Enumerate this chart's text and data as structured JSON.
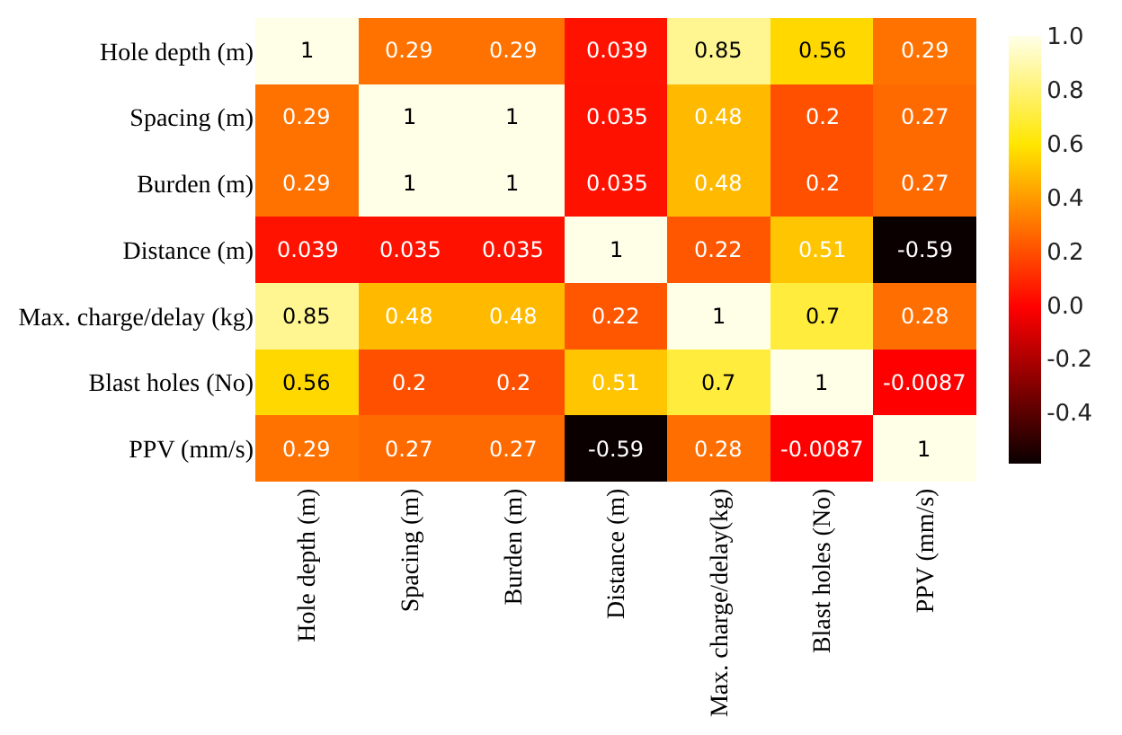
{
  "chart_data": {
    "type": "heatmap",
    "categories": [
      "Hole depth (m)",
      "Spacing (m)",
      "Burden (m)",
      "Distance (m)",
      "Max. charge/delay(kg)",
      "Blast holes (No)",
      "PPV (mm/s)"
    ],
    "y_categories": [
      "Hole depth (m)",
      "Spacing (m)",
      "Burden (m)",
      "Distance (m)",
      "Max. charge/delay (kg)",
      "Blast holes (No)",
      "PPV (mm/s)"
    ],
    "cells": [
      [
        1,
        0.29,
        0.29,
        0.039,
        0.85,
        0.56,
        0.29
      ],
      [
        0.29,
        1,
        1,
        0.035,
        0.48,
        0.2,
        0.27
      ],
      [
        0.29,
        1,
        1,
        0.035,
        0.48,
        0.2,
        0.27
      ],
      [
        0.039,
        0.035,
        0.035,
        1,
        0.22,
        0.51,
        -0.59
      ],
      [
        0.85,
        0.48,
        0.48,
        0.22,
        1,
        0.7,
        0.28
      ],
      [
        0.56,
        0.2,
        0.2,
        0.51,
        0.7,
        1,
        -0.0087
      ],
      [
        0.29,
        0.27,
        0.27,
        -0.59,
        0.28,
        -0.0087,
        1
      ]
    ],
    "data_labels": true,
    "clim": [
      -0.59,
      1
    ],
    "cticks": [
      {
        "value": -0.4,
        "label": "-0.4"
      },
      {
        "value": -0.2,
        "label": "-0.2"
      },
      {
        "value": 0,
        "label": "0.0"
      },
      {
        "value": 0.2,
        "label": "0.2"
      },
      {
        "value": 0.4,
        "label": "0.4"
      },
      {
        "value": 0.6,
        "label": "0.6"
      },
      {
        "value": 0.8,
        "label": "0.8"
      },
      {
        "value": 1,
        "label": "1.0"
      }
    ]
  }
}
